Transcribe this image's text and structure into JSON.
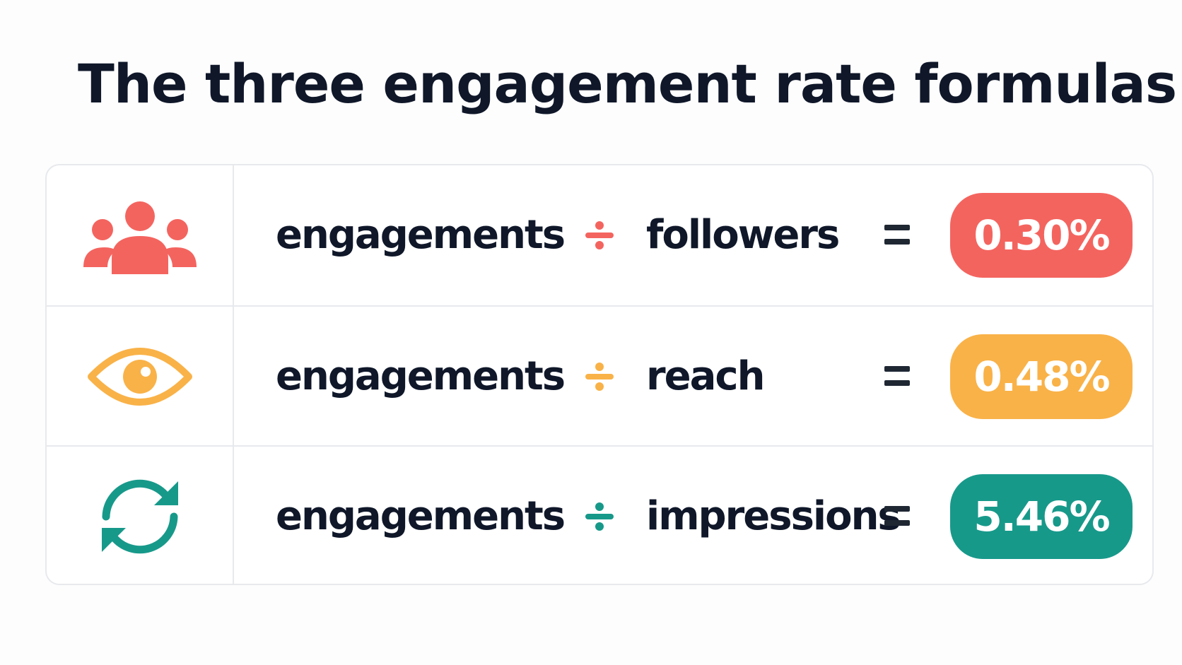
{
  "title": "The three engagement rate formulas",
  "rows": [
    {
      "icon": "people-group-icon",
      "color": "#f4645f",
      "numerator": "engagements",
      "operator": "÷",
      "denominator": "followers",
      "equals": "=",
      "result": "0.30%"
    },
    {
      "icon": "eye-icon",
      "color": "#f9b248",
      "numerator": "engagements",
      "operator": "÷",
      "denominator": "reach",
      "equals": "=",
      "result": "0.48%"
    },
    {
      "icon": "refresh-cycle-icon",
      "color": "#17998a",
      "numerator": "engagements",
      "operator": "÷",
      "denominator": "impressions",
      "equals": "=",
      "result": "5.46%"
    }
  ],
  "colors": {
    "text": "#0f1729",
    "border": "#e7e9ed",
    "background": "#fdfdfd"
  }
}
